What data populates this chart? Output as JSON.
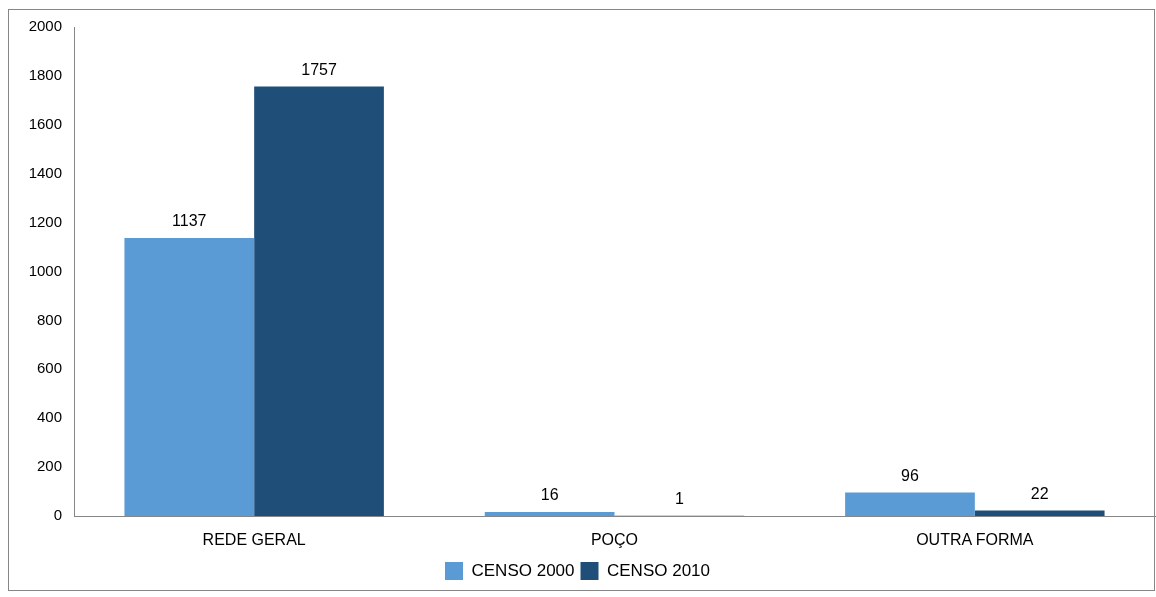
{
  "chart_data": {
    "type": "bar",
    "categories": [
      "REDE GERAL",
      "POÇO",
      "OUTRA FORMA"
    ],
    "series": [
      {
        "name": "CENSO 2000",
        "color": "#5b9bd5",
        "values": [
          1137,
          16,
          96
        ]
      },
      {
        "name": "CENSO 2010",
        "color": "#1f4e79",
        "values": [
          1757,
          1,
          22
        ]
      }
    ],
    "ylim": [
      0,
      2000
    ],
    "yticks": [
      0,
      200,
      400,
      600,
      800,
      1000,
      1200,
      1400,
      1600,
      1800,
      2000
    ],
    "data_labels": true,
    "legend": "bottom"
  }
}
